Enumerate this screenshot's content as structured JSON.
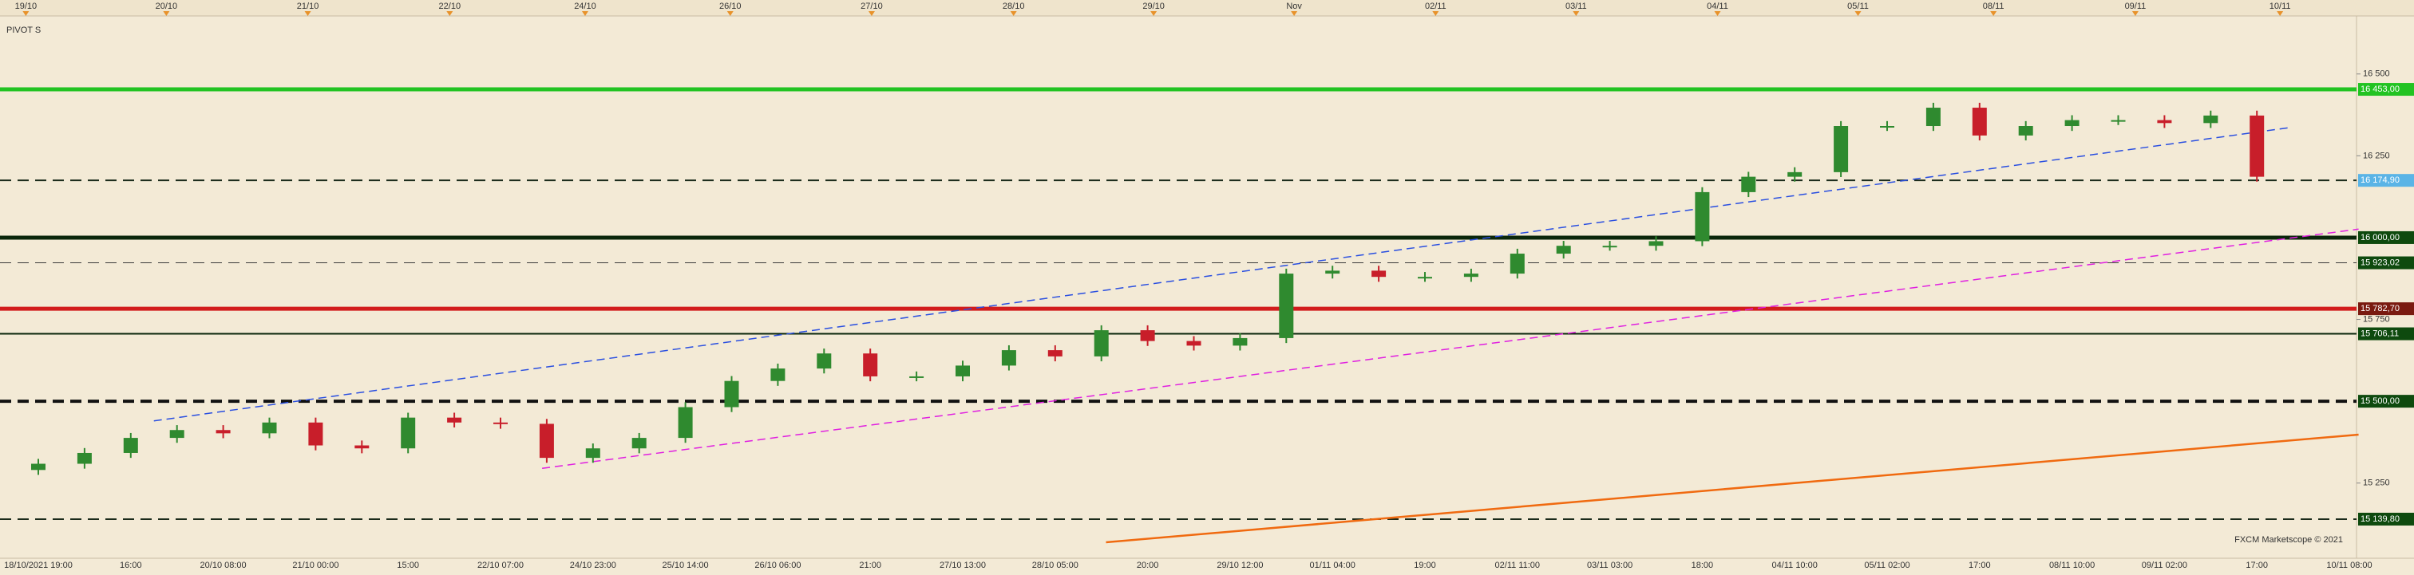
{
  "chart_data": {
    "type": "candlestick",
    "title": "PIVOT S",
    "watermark": "FXCM Marketscope © 2021",
    "up_color": "#2f8a2f",
    "down_color": "#c81e2a",
    "categories": [
      "18/10/2021 19:00",
      null,
      "16:00",
      null,
      "20/10 08:00",
      null,
      "21/10 00:00",
      null,
      "15:00",
      null,
      "22/10 07:00",
      null,
      "24/10 23:00",
      null,
      "25/10 14:00",
      null,
      "26/10 06:00",
      null,
      "21:00",
      null,
      "27/10 13:00",
      null,
      "28/10 05:00",
      null,
      "20:00",
      null,
      "29/10 12:00",
      null,
      "01/11 04:00",
      null,
      "19:00",
      null,
      "02/11 11:00",
      null,
      "03/11 03:00",
      null,
      "18:00",
      null,
      "04/11 10:00",
      null,
      "05/11 02:00",
      null,
      "17:00",
      null,
      "08/11 10:00",
      null,
      "09/11 02:00",
      null,
      "17:00",
      null,
      "10/11 08:00"
    ],
    "open": [
      15290,
      15309,
      15342,
      15388,
      15412,
      15402,
      15435,
      15365,
      15356,
      15450,
      15435,
      15431,
      15327,
      15356,
      15388,
      15482,
      15562,
      15600,
      15646,
      15576,
      15576,
      15609,
      15656,
      15637,
      15717,
      15684,
      15670,
      15693,
      15890,
      15899,
      15880,
      15880,
      15890,
      15951,
      15975,
      15975,
      15989,
      16139,
      16186,
      16200,
      16341,
      16341,
      16397,
      16312,
      16341,
      16359,
      16359,
      16350,
      16373,
      null,
      null
    ],
    "high": [
      15324,
      15357,
      15403,
      15427,
      15427,
      15450,
      15450,
      15380,
      15465,
      15465,
      15450,
      15446,
      15371,
      15403,
      15497,
      15577,
      15615,
      15661,
      15661,
      15591,
      15624,
      15671,
      15671,
      15732,
      15732,
      15699,
      15708,
      15905,
      15914,
      15914,
      15895,
      15905,
      15966,
      15990,
      15990,
      16004,
      16154,
      16201,
      16215,
      16356,
      16356,
      16412,
      16412,
      16356,
      16374,
      16374,
      16374,
      16388,
      16388,
      null,
      null
    ],
    "low": [
      15275,
      15294,
      15327,
      15373,
      15387,
      15387,
      15350,
      15341,
      15341,
      15420,
      15416,
      15312,
      15312,
      15341,
      15373,
      15467,
      15547,
      15585,
      15561,
      15561,
      15561,
      15594,
      15622,
      15622,
      15669,
      15655,
      15655,
      15678,
      15875,
      15865,
      15865,
      15865,
      15875,
      15936,
      15960,
      15960,
      15974,
      16124,
      16171,
      16185,
      16326,
      16326,
      16297,
      16297,
      16326,
      16344,
      16335,
      16335,
      16171,
      null,
      null
    ],
    "close": [
      15309,
      15342,
      15388,
      15412,
      15402,
      15435,
      15365,
      15356,
      15450,
      15435,
      15431,
      15327,
      15356,
      15388,
      15482,
      15562,
      15600,
      15646,
      15576,
      15576,
      15609,
      15656,
      15637,
      15717,
      15684,
      15670,
      15693,
      15890,
      15899,
      15880,
      15880,
      15890,
      15951,
      15975,
      15975,
      15989,
      16139,
      16186,
      16200,
      16341,
      16341,
      16397,
      16312,
      16341,
      16359,
      16359,
      16350,
      16373,
      16186,
      null,
      null
    ],
    "day_labels": {
      "labels": [
        "19/10",
        "20/10",
        "21/10",
        "22/10",
        "24/10",
        "26/10",
        "27/10",
        "28/10",
        "29/10",
        "Nov",
        "02/11",
        "03/11",
        "04/11",
        "05/11",
        "08/11",
        "09/11",
        "10/11"
      ],
      "x": [
        -0.27,
        2.77,
        5.83,
        8.9,
        11.83,
        14.97,
        18.03,
        21.1,
        24.13,
        27.17,
        30.23,
        33.27,
        36.33,
        39.37,
        42.3,
        45.37,
        48.5
      ]
    },
    "ylim": [
      15030,
      16670
    ],
    "yticks": [
      {
        "value": 15250,
        "label": "15 250"
      },
      {
        "value": 15750,
        "label": "15 750"
      },
      {
        "value": 16250,
        "label": "16 250"
      },
      {
        "value": 16500,
        "label": "16 500"
      }
    ],
    "levels": [
      {
        "value": 16453,
        "label": "16 453,00",
        "color": "#22c322",
        "width": 5,
        "dash": false,
        "label_color": "#22c322"
      },
      {
        "value": 16174.9,
        "label": "16 174,90",
        "color": "#1a2a1a",
        "width": 2,
        "dash": true,
        "label_color": "#5ab4e6"
      },
      {
        "value": 16000,
        "label": "16 000,00",
        "color": "#0a260a",
        "width": 5,
        "dash": false,
        "label_color": "#0e4a0e"
      },
      {
        "value": 15923.02,
        "label": "15 923,02",
        "color": "#3a3a3a",
        "width": 1,
        "dash": true,
        "label_color": "#0e4a0e"
      },
      {
        "value": 15782.7,
        "label": "15 782,70",
        "color": "#d21c1c",
        "width": 5,
        "dash": false,
        "label_color": "#7a1a10"
      },
      {
        "value": 15706.11,
        "label": "15 706,11",
        "color": "#0a260a",
        "width": 2,
        "dash": false,
        "label_color": "#0e4a0e"
      },
      {
        "value": 15500,
        "label": "15 500,00",
        "color": "#111111",
        "width": 4,
        "dash": true,
        "label_color": "#0e4a0e"
      },
      {
        "value": 15139.8,
        "label": "15 139,80",
        "color": "#1a2a1a",
        "width": 2,
        "dash": true,
        "label_color": "#0e4a0e"
      }
    ],
    "trendlines": [
      {
        "color": "#2a4fe0",
        "x": [
          2.5,
          48.7
        ],
        "values": [
          15440,
          16336
        ],
        "dash": true
      },
      {
        "color": "#e020e0",
        "x": [
          10.9,
          50.2
        ],
        "values": [
          15295,
          16026
        ],
        "dash": true
      },
      {
        "color": "#f06a10",
        "x": [
          23.1,
          50.2
        ],
        "values": [
          15069,
          15398
        ],
        "dash": false
      }
    ]
  }
}
